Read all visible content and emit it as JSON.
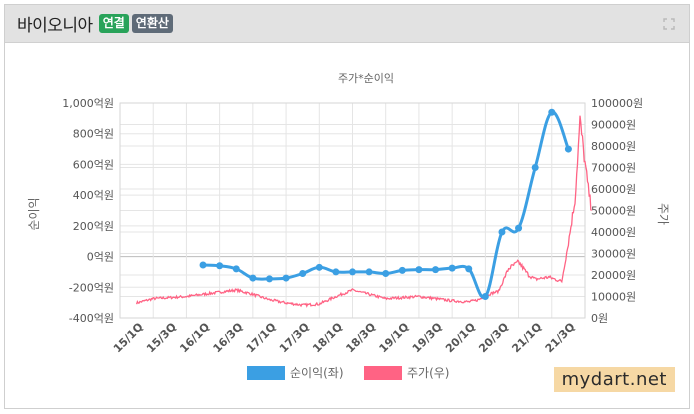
{
  "header": {
    "company": "바이오니아",
    "badge_consolidated": "연결",
    "badge_annualized": "연환산"
  },
  "icons": {
    "expand": "expand-icon"
  },
  "colors": {
    "net_income": "#3b9fe3",
    "stock_price": "#ff6384",
    "grid": "#e5e5e5",
    "axis_text": "#555555",
    "watermark_bg": "#f6d8a4"
  },
  "watermark": "mydart.net",
  "chart_data": {
    "type": "line",
    "title": "주가*순이익",
    "ylabel_left": "순이익",
    "ylabel_right": "주가",
    "categories": [
      "15/1Q",
      "15/3Q",
      "16/1Q",
      "16/3Q",
      "17/1Q",
      "17/3Q",
      "18/1Q",
      "18/3Q",
      "19/1Q",
      "19/3Q",
      "20/1Q",
      "20/3Q",
      "21/1Q",
      "21/3Q"
    ],
    "ylim_left": [
      -400,
      1000
    ],
    "yticks_left": [
      "-400억원",
      "-200억원",
      "0억원",
      "200억원",
      "400억원",
      "600억원",
      "800억원",
      "1,000억원"
    ],
    "ylim_right": [
      0,
      100000
    ],
    "yticks_right": [
      "0원",
      "10000원",
      "20000원",
      "30000원",
      "40000원",
      "50000원",
      "60000원",
      "70000원",
      "80000원",
      "90000원",
      "100000원"
    ],
    "grid": true,
    "legend_position": "bottom",
    "legend": [
      "순이익(좌)",
      "주가(우)"
    ],
    "series": [
      {
        "name": "순이익(좌)",
        "axis": "left",
        "x": [
          2.0,
          2.5,
          3.0,
          3.5,
          4.0,
          4.5,
          5.0,
          5.5,
          6.0,
          6.5,
          7.0,
          7.5,
          8.0,
          8.5,
          9.0,
          9.5,
          10.0,
          10.5,
          11.0,
          11.5,
          12.0,
          12.5,
          13.0,
          13.5
        ],
        "values": [
          -55,
          -60,
          -80,
          -140,
          -145,
          -140,
          -110,
          -70,
          -100,
          -100,
          -100,
          -110,
          -90,
          -85,
          -85,
          -75,
          -80,
          -260,
          160,
          185,
          580,
          940,
          700,
          null
        ]
      },
      {
        "name": "주가(우)",
        "axis": "right",
        "x": [
          0.0,
          0.5,
          1.0,
          1.5,
          2.0,
          2.5,
          3.0,
          3.5,
          4.0,
          4.5,
          5.0,
          5.5,
          6.0,
          6.5,
          7.0,
          7.5,
          8.0,
          8.5,
          9.0,
          9.5,
          10.0,
          10.3,
          10.6,
          10.9,
          11.2,
          11.5,
          11.8,
          12.0,
          12.4,
          12.8,
          13.0,
          13.2,
          13.35,
          13.5,
          13.6,
          13.7
        ],
        "values": [
          7000,
          9000,
          9500,
          10000,
          11000,
          12000,
          13000,
          11000,
          8500,
          7000,
          6000,
          6500,
          10000,
          13000,
          11000,
          9000,
          9500,
          10000,
          9000,
          8000,
          7500,
          8500,
          11000,
          12500,
          23000,
          26000,
          20000,
          18000,
          19000,
          17000,
          35000,
          55000,
          92000,
          72000,
          60000,
          50000
        ]
      }
    ]
  }
}
